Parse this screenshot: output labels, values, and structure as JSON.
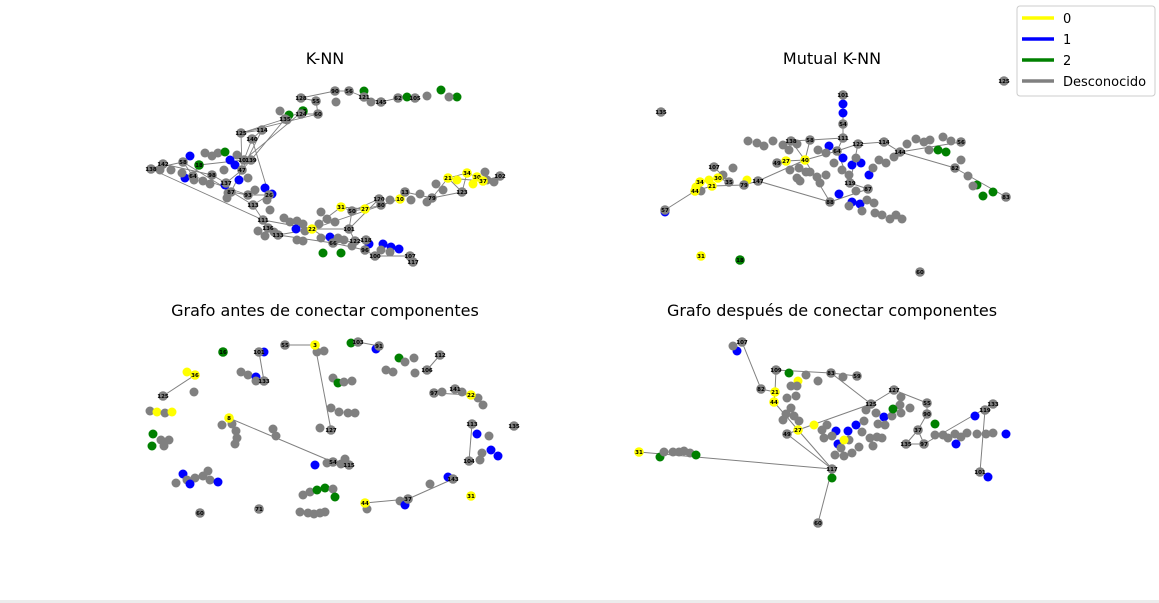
{
  "chart_data": {
    "type": "network",
    "legend": {
      "placement": "top-right",
      "entries": [
        {
          "label": "0",
          "color": "#ffff00"
        },
        {
          "label": "1",
          "color": "#0000ff"
        },
        {
          "label": "2",
          "color": "#008000"
        },
        {
          "label": "Desconocido",
          "color": "#808080"
        }
      ]
    },
    "colors": {
      "0": "#ffff00",
      "1": "#0000ff",
      "2": "#008000",
      "u": "#808080",
      "edge": "#808080"
    },
    "panels": [
      {
        "title": "K-NN",
        "nodes": [
          {
            "id": "90",
            "c": "u"
          },
          {
            "id": "56",
            "c": "u"
          },
          {
            "id": "62",
            "c": "u"
          },
          {
            "id": "105",
            "c": "u"
          },
          {
            "id": "128",
            "c": "u"
          },
          {
            "id": "55",
            "c": "u"
          },
          {
            "id": "60",
            "c": "u"
          },
          {
            "id": "125",
            "c": "u"
          },
          {
            "id": "114",
            "c": "u"
          },
          {
            "id": "140",
            "c": "u"
          },
          {
            "id": "15",
            "c": "2"
          },
          {
            "id": "124",
            "c": "u"
          },
          {
            "id": "135",
            "c": "u"
          },
          {
            "id": "121",
            "c": "u"
          },
          {
            "id": "145",
            "c": "u"
          },
          {
            "id": "142",
            "c": "u"
          },
          {
            "id": "138",
            "c": "u"
          },
          {
            "id": "18",
            "c": "2"
          },
          {
            "id": "58",
            "c": "u"
          },
          {
            "id": "64",
            "c": "u"
          },
          {
            "id": "108",
            "c": "u"
          },
          {
            "id": "139",
            "c": "u"
          },
          {
            "id": "113",
            "c": "u"
          },
          {
            "id": "137",
            "c": "u"
          },
          {
            "id": "47",
            "c": "u"
          },
          {
            "id": "87",
            "c": "u"
          },
          {
            "id": "93",
            "c": "u"
          },
          {
            "id": "26",
            "c": "u"
          },
          {
            "id": "98",
            "c": "u"
          },
          {
            "id": "111",
            "c": "u"
          },
          {
            "id": "136",
            "c": "u"
          },
          {
            "id": "133",
            "c": "u"
          },
          {
            "id": "31",
            "c": "0"
          },
          {
            "id": "27",
            "c": "0"
          },
          {
            "id": "50",
            "c": "u"
          },
          {
            "id": "22",
            "c": "0"
          },
          {
            "id": "101",
            "c": "u"
          },
          {
            "id": "120",
            "c": "u"
          },
          {
            "id": "80",
            "c": "u"
          },
          {
            "id": "10",
            "c": "0"
          },
          {
            "id": "13",
            "c": "u"
          },
          {
            "id": "79",
            "c": "u"
          },
          {
            "id": "21",
            "c": "0"
          },
          {
            "id": "34",
            "c": "0"
          },
          {
            "id": "30",
            "c": "0"
          },
          {
            "id": "37",
            "c": "0"
          },
          {
            "id": "102",
            "c": "u"
          },
          {
            "id": "123",
            "c": "u"
          },
          {
            "id": "107",
            "c": "u"
          },
          {
            "id": "100",
            "c": "u"
          },
          {
            "id": "117",
            "c": "u"
          },
          {
            "id": "96",
            "c": "u"
          },
          {
            "id": "66",
            "c": "u"
          },
          {
            "id": "118",
            "c": "u"
          },
          {
            "id": "122",
            "c": "u"
          }
        ],
        "edges": []
      },
      {
        "title": "Mutual K-NN",
        "nodes": [
          {
            "id": "101",
            "c": "u"
          },
          {
            "id": "135",
            "c": "u"
          },
          {
            "id": "125",
            "c": "u"
          },
          {
            "id": "54",
            "c": "u"
          },
          {
            "id": "111",
            "c": "u"
          },
          {
            "id": "58",
            "c": "u"
          },
          {
            "id": "64",
            "c": "u"
          },
          {
            "id": "122",
            "c": "u"
          },
          {
            "id": "138",
            "c": "u"
          },
          {
            "id": "40",
            "c": "0"
          },
          {
            "id": "27",
            "c": "0"
          },
          {
            "id": "49",
            "c": "u"
          },
          {
            "id": "107",
            "c": "u"
          },
          {
            "id": "35",
            "c": "u"
          },
          {
            "id": "30",
            "c": "0"
          },
          {
            "id": "147",
            "c": "u"
          },
          {
            "id": "34",
            "c": "0"
          },
          {
            "id": "44",
            "c": "0"
          },
          {
            "id": "21",
            "c": "0"
          },
          {
            "id": "79",
            "c": "u"
          },
          {
            "id": "88",
            "c": "u"
          },
          {
            "id": "87",
            "c": "u"
          },
          {
            "id": "82",
            "c": "u"
          },
          {
            "id": "83",
            "c": "u"
          },
          {
            "id": "56",
            "c": "u"
          },
          {
            "id": "31",
            "c": "0"
          },
          {
            "id": "18",
            "c": "2"
          },
          {
            "id": "60",
            "c": "u"
          },
          {
            "id": "57",
            "c": "u"
          },
          {
            "id": "119",
            "c": "u"
          },
          {
            "id": "144",
            "c": "u"
          },
          {
            "id": "114",
            "c": "u"
          }
        ],
        "edges": []
      },
      {
        "title": "Grafo antes de conectar componentes",
        "nodes": [
          {
            "id": "3",
            "c": "0"
          },
          {
            "id": "55",
            "c": "u"
          },
          {
            "id": "103",
            "c": "u"
          },
          {
            "id": "91",
            "c": "u"
          },
          {
            "id": "112",
            "c": "u"
          },
          {
            "id": "16",
            "c": "2"
          },
          {
            "id": "101",
            "c": "u"
          },
          {
            "id": "36",
            "c": "0"
          },
          {
            "id": "125",
            "c": "u"
          },
          {
            "id": "106",
            "c": "u"
          },
          {
            "id": "8",
            "c": "0"
          },
          {
            "id": "54",
            "c": "u"
          },
          {
            "id": "135",
            "c": "u"
          },
          {
            "id": "141",
            "c": "u"
          },
          {
            "id": "31",
            "c": "0"
          },
          {
            "id": "44",
            "c": "0"
          },
          {
            "id": "60",
            "c": "u"
          },
          {
            "id": "71",
            "c": "u"
          },
          {
            "id": "113",
            "c": "u"
          },
          {
            "id": "127",
            "c": "u"
          },
          {
            "id": "143",
            "c": "u"
          },
          {
            "id": "133",
            "c": "u"
          },
          {
            "id": "97",
            "c": "u"
          },
          {
            "id": "37",
            "c": "u"
          },
          {
            "id": "22",
            "c": "0"
          },
          {
            "id": "104",
            "c": "u"
          },
          {
            "id": "115",
            "c": "u"
          }
        ],
        "edges": []
      },
      {
        "title": "Grafo después de conectar componentes",
        "nodes": [
          {
            "id": "107",
            "c": "u"
          },
          {
            "id": "109",
            "c": "u"
          },
          {
            "id": "82",
            "c": "u"
          },
          {
            "id": "21",
            "c": "0"
          },
          {
            "id": "44",
            "c": "0"
          },
          {
            "id": "27",
            "c": "0"
          },
          {
            "id": "49",
            "c": "u"
          },
          {
            "id": "117",
            "c": "u"
          },
          {
            "id": "31",
            "c": "0"
          },
          {
            "id": "125",
            "c": "u"
          },
          {
            "id": "127",
            "c": "u"
          },
          {
            "id": "55",
            "c": "u"
          },
          {
            "id": "133",
            "c": "u"
          },
          {
            "id": "119",
            "c": "u"
          },
          {
            "id": "101",
            "c": "u"
          },
          {
            "id": "135",
            "c": "u"
          },
          {
            "id": "97",
            "c": "u"
          },
          {
            "id": "83",
            "c": "u"
          },
          {
            "id": "59",
            "c": "u"
          },
          {
            "id": "60",
            "c": "u"
          },
          {
            "id": "90",
            "c": "u"
          },
          {
            "id": "37",
            "c": "u"
          }
        ],
        "edges": []
      }
    ]
  }
}
